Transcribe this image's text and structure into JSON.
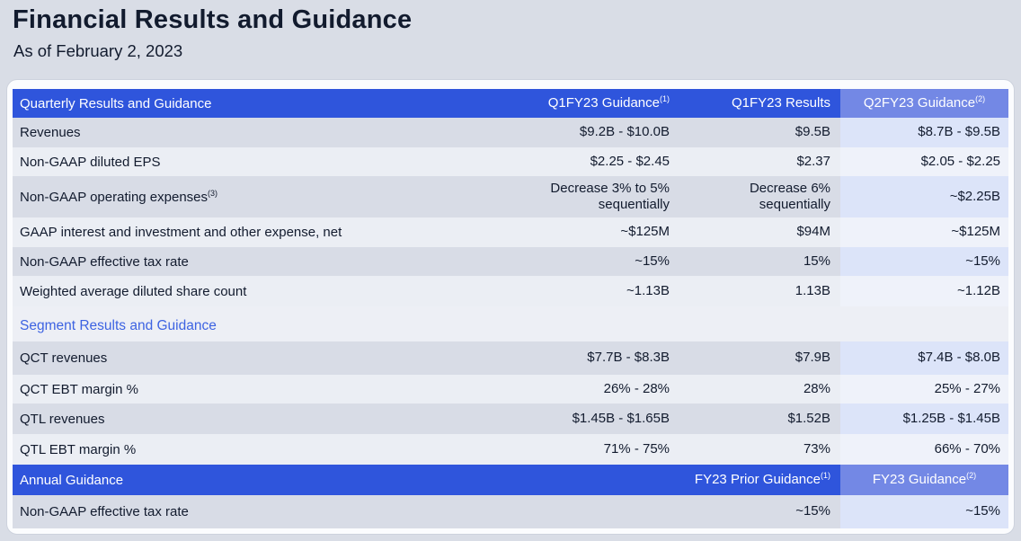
{
  "page": {
    "title": "Financial Results and Guidance",
    "subtitle": "As of February 2, 2023"
  },
  "colors": {
    "page_bg": "#d9dde6",
    "card_bg": "#fbfcfe",
    "header_blue": "#2f55dc",
    "header_blue_light": "#7388e5",
    "stripe_dark": "#d8dce6",
    "stripe_light": "#ebeef4",
    "highlight_dark": "#dce4f9",
    "highlight_light": "#eff2fa",
    "section_bg": "#edeff5",
    "section_text": "#3d63e2",
    "text": "#121b2e"
  },
  "table": {
    "header": {
      "title": "Quarterly Results and Guidance",
      "col_guidance": "Q1FY23 Guidance",
      "col_guidance_sup": "(1)",
      "col_results": "Q1FY23 Results",
      "col_q2": "Q2FY23 Guidance",
      "col_q2_sup": "(2)"
    },
    "rows": [
      {
        "label": "Revenues",
        "guidance": "$9.2B - $10.0B",
        "results": "$9.5B",
        "q2_guidance": "$8.7B - $9.5B"
      },
      {
        "label": "Non-GAAP diluted EPS",
        "guidance": "$2.25 - $2.45",
        "results": "$2.37",
        "q2_guidance": "$2.05 - $2.25"
      },
      {
        "label": "Non-GAAP operating expenses",
        "label_sup": "(3)",
        "guidance": "Decrease 3% to 5%\nsequentially",
        "results": "Decrease 6%\nsequentially",
        "q2_guidance": "~$2.25B"
      },
      {
        "label": "GAAP interest and investment and other expense, net",
        "guidance": "~$125M",
        "results": "$94M",
        "q2_guidance": "~$125M"
      },
      {
        "label": "Non-GAAP effective tax rate",
        "guidance": "~15%",
        "results": "15%",
        "q2_guidance": "~15%"
      },
      {
        "label": "Weighted average diluted share count",
        "guidance": "~1.13B",
        "results": "1.13B",
        "q2_guidance": "~1.12B"
      }
    ],
    "section_title": "Segment Results and Guidance",
    "segment_rows": [
      {
        "label": "QCT revenues",
        "guidance": "$7.7B - $8.3B",
        "results": "$7.9B",
        "q2_guidance": "$7.4B - $8.0B"
      },
      {
        "label": "QCT EBT margin %",
        "guidance": "26% - 28%",
        "results": "28%",
        "q2_guidance": "25% - 27%"
      },
      {
        "label": "QTL revenues",
        "guidance": "$1.45B - $1.65B",
        "results": "$1.52B",
        "q2_guidance": "$1.25B - $1.45B"
      },
      {
        "label": "QTL EBT margin %",
        "guidance": "71% - 75%",
        "results": "73%",
        "q2_guidance": "66% - 70%"
      }
    ],
    "annual_header": {
      "title": "Annual Guidance",
      "col_prior": "FY23 Prior Guidance",
      "col_prior_sup": "(1)",
      "col_fy23": "FY23 Guidance",
      "col_fy23_sup": "(2)"
    },
    "annual_rows": [
      {
        "label": "Non-GAAP effective tax rate",
        "guidance": "",
        "results": "~15%",
        "q2_guidance": "~15%"
      }
    ]
  }
}
